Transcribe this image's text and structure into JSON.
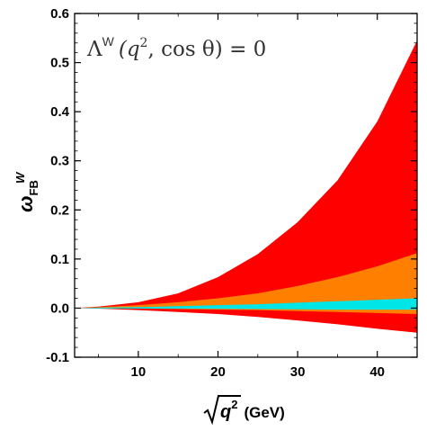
{
  "chart_data": {
    "type": "area",
    "xlabel": "(GeV)",
    "xlabel_symbol": "q",
    "xlabel_symbol_sup": "2",
    "ylabel_main": "ω",
    "ylabel_sup": "W",
    "ylabel_sub": "FB",
    "annotation": {
      "lambda": "Λ",
      "sup": "W",
      "args_open": "(q",
      "args_sup": "2",
      "args_rest": ", cos θ) = 0"
    },
    "xlim": [
      2,
      45
    ],
    "ylim": [
      -0.1,
      0.6
    ],
    "xticks": [
      10,
      20,
      30,
      40
    ],
    "yticks": [
      -0.1,
      0.0,
      0.1,
      0.2,
      0.3,
      0.4,
      0.5,
      0.6
    ],
    "ytick_labels": [
      "-0.1",
      "0.0",
      "0.1",
      "0.2",
      "0.3",
      "0.4",
      "0.5",
      "0.6"
    ],
    "series": [
      {
        "color": "#ff0000",
        "x": [
          2,
          5,
          10,
          15,
          20,
          25,
          30,
          35,
          40,
          45
        ],
        "upper": [
          0.0,
          0.003,
          0.012,
          0.03,
          0.063,
          0.11,
          0.175,
          0.26,
          0.38,
          0.545
        ],
        "lower": [
          0.0,
          -0.001,
          -0.004,
          -0.008,
          -0.012,
          -0.018,
          -0.025,
          -0.033,
          -0.042,
          -0.05
        ]
      },
      {
        "color": "#ff8000",
        "x": [
          2,
          5,
          10,
          15,
          20,
          25,
          30,
          35,
          40,
          45
        ],
        "upper": [
          0.0,
          0.002,
          0.006,
          0.012,
          0.02,
          0.03,
          0.045,
          0.063,
          0.085,
          0.112
        ],
        "lower": [
          0.0,
          -0.0005,
          -0.001,
          -0.002,
          -0.003,
          -0.004,
          -0.006,
          -0.008,
          -0.01,
          -0.012
        ]
      },
      {
        "color": "#00e5e5",
        "x": [
          2,
          5,
          10,
          15,
          20,
          25,
          30,
          35,
          40,
          45
        ],
        "upper": [
          0.0,
          0.001,
          0.002,
          0.004,
          0.006,
          0.008,
          0.011,
          0.014,
          0.017,
          0.02
        ],
        "lower": [
          0.0,
          -0.0005,
          -0.001,
          -0.001,
          -0.0015,
          -0.002,
          -0.0025,
          -0.003,
          -0.003,
          -0.003
        ]
      }
    ]
  }
}
